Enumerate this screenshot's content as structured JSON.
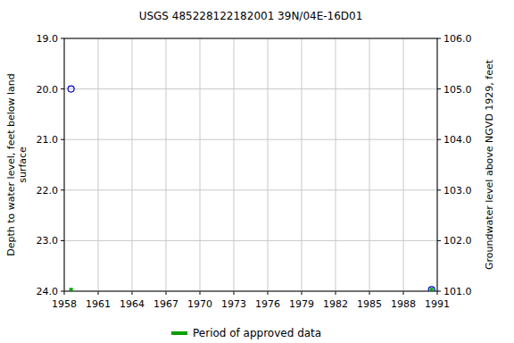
{
  "chart_data": {
    "type": "scatter",
    "title": "USGS 485228122182001 39N/04E-16D01",
    "y_label": "Depth to water level, feet below land\nsurface",
    "y2_label": "Groundwater level above NGVD 1929, feet",
    "xlim": [
      1958,
      1991
    ],
    "xticks": [
      1958,
      1961,
      1964,
      1967,
      1970,
      1973,
      1976,
      1979,
      1982,
      1985,
      1988,
      1991
    ],
    "ylim": [
      24,
      19
    ],
    "yticks": [
      {
        "value": 19,
        "label": "19.0"
      },
      {
        "value": 20,
        "label": "20.0"
      },
      {
        "value": 21,
        "label": "21.0"
      },
      {
        "value": 22,
        "label": "22.0"
      },
      {
        "value": 23,
        "label": "23.0"
      },
      {
        "value": 24,
        "label": "24.0"
      }
    ],
    "y2lim": [
      101,
      106
    ],
    "y2ticks": [
      {
        "value": 106,
        "label": "106.0"
      },
      {
        "value": 105,
        "label": "105.0"
      },
      {
        "value": 104,
        "label": "104.0"
      },
      {
        "value": 103,
        "label": "103.0"
      },
      {
        "value": 102,
        "label": "102.0"
      },
      {
        "value": 101,
        "label": "101.0"
      }
    ],
    "grid": true,
    "legend": "bottom",
    "x": [
      1958.6,
      1990.5
    ],
    "series": [
      {
        "color": "#0000cc",
        "marker": "circle",
        "values": [
          20.0,
          23.97
        ]
      },
      {
        "name": "Period of approved data",
        "color": "#00a000",
        "marker": "square",
        "values": [
          23.97,
          23.97
        ]
      }
    ]
  }
}
